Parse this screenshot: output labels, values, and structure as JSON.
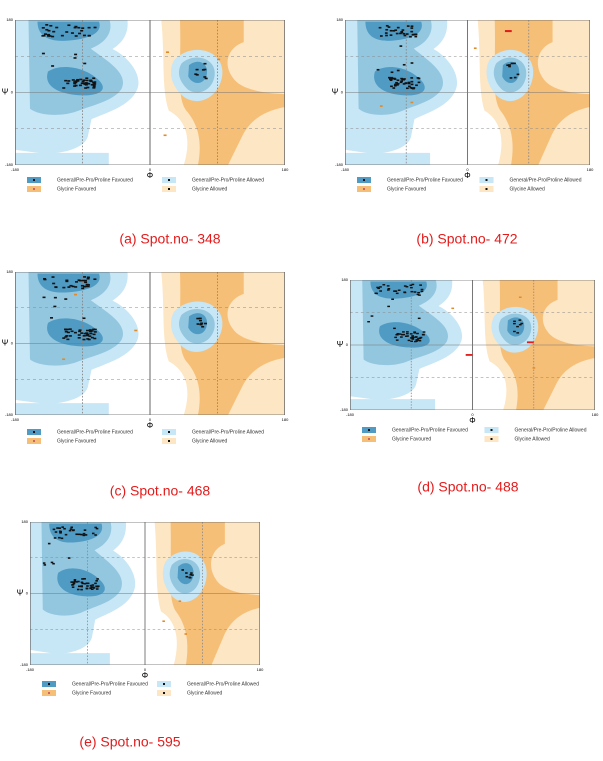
{
  "axes": {
    "x_label": "Φ",
    "y_label": "Ψ",
    "ticks": [
      -180,
      0,
      180
    ]
  },
  "legend": [
    "General/Pre-Pro/Proline Favoured",
    "General/Pre-Pro/Proline Allowed",
    "Glycine Favoured",
    "Glycine Allowed"
  ],
  "panels": [
    {
      "caption": "(a)  Spot.no- 348"
    },
    {
      "caption": "(b) Spot.no- 472"
    },
    {
      "caption": "(c)  Spot.no- 468"
    },
    {
      "caption": "(d)   Spot.no- 488"
    },
    {
      "caption": "(e)  Spot.no- 595"
    }
  ]
}
